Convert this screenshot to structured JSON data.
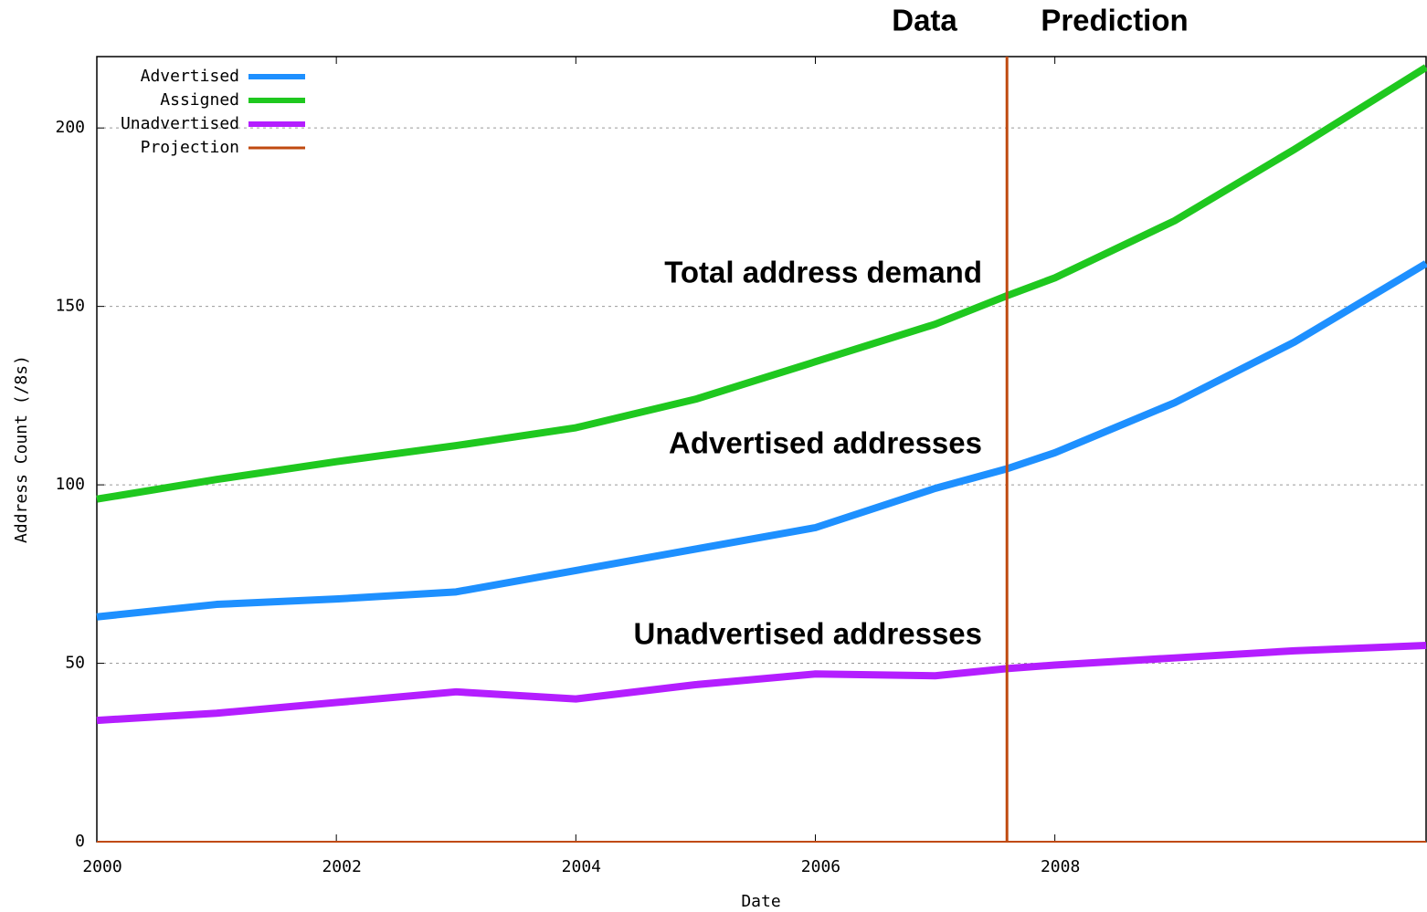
{
  "chart_data": {
    "type": "line",
    "x_label": "Date",
    "y_label": "Address Count (/8s)",
    "x": [
      2000,
      2001,
      2002,
      2003,
      2004,
      2005,
      2006,
      2007,
      2007.6,
      2008,
      2009,
      2010,
      2011.1
    ],
    "series": [
      {
        "name": "Advertised",
        "color": "#1e90ff",
        "values": [
          63,
          66.5,
          68,
          70,
          76,
          82,
          88,
          99,
          104.5,
          109,
          123,
          140,
          162
        ]
      },
      {
        "name": "Assigned",
        "color": "#1fc81f",
        "values": [
          96,
          101.5,
          106.5,
          111,
          116,
          124,
          134.5,
          145,
          153,
          158,
          174,
          194,
          217
        ]
      },
      {
        "name": "Unadvertised",
        "color": "#b41eff",
        "values": [
          34,
          36,
          39,
          42,
          40,
          44,
          47,
          46.5,
          48.5,
          49.5,
          51.5,
          53.5,
          55
        ]
      }
    ],
    "projection": {
      "name": "Projection",
      "color": "#c04a10",
      "x": 2007.6
    },
    "annotations": [
      "Data",
      "Prediction",
      "Total address demand",
      "Advertised addresses",
      "Unadvertised addresses"
    ],
    "xlim": [
      2000,
      2011.1
    ],
    "xticks": [
      2000,
      2002,
      2004,
      2006,
      2008
    ],
    "ylim": [
      0,
      220
    ],
    "yticks": [
      0,
      50,
      100,
      150,
      200
    ],
    "grid": true,
    "legend": "upper left"
  }
}
